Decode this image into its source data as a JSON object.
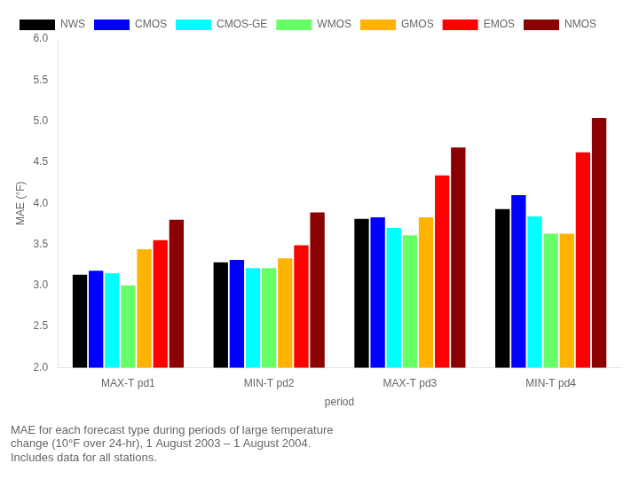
{
  "chart_data": {
    "type": "bar",
    "categories": [
      "MAX-T pd1",
      "MIN-T pd2",
      "MAX-T pd3",
      "MIN-T pd4"
    ],
    "series": [
      {
        "name": "NWS",
        "color": "#000000",
        "values": [
          3.13,
          3.28,
          3.81,
          3.93
        ]
      },
      {
        "name": "CMOS",
        "color": "#0000FF",
        "values": [
          3.18,
          3.31,
          3.83,
          4.1
        ]
      },
      {
        "name": "CMOS-GE",
        "color": "#00FFFF",
        "values": [
          3.15,
          3.21,
          3.7,
          3.84
        ]
      },
      {
        "name": "WMOS",
        "color": "#66FF66",
        "values": [
          3.0,
          3.21,
          3.61,
          3.63
        ]
      },
      {
        "name": "GMOS",
        "color": "#FFB300",
        "values": [
          3.44,
          3.33,
          3.83,
          3.63
        ]
      },
      {
        "name": "EMOS",
        "color": "#FF0000",
        "values": [
          3.55,
          3.49,
          4.34,
          4.62
        ]
      },
      {
        "name": "NMOS",
        "color": "#8B0000",
        "values": [
          3.8,
          3.89,
          4.68,
          5.04
        ]
      }
    ],
    "xlabel": "period",
    "ylabel": "MAE (°F)",
    "ylim": [
      2.0,
      6.0
    ],
    "yticks": [
      {
        "value": 2.0,
        "label": "2.0"
      },
      {
        "value": 2.5,
        "label": "2.5"
      },
      {
        "value": 3.0,
        "label": "3.0"
      },
      {
        "value": 3.5,
        "label": "3.5"
      },
      {
        "value": 4.0,
        "label": "4.0"
      },
      {
        "value": 4.5,
        "label": "4.5"
      },
      {
        "value": 5.0,
        "label": "5.0"
      },
      {
        "value": 5.5,
        "label": "5.5"
      },
      {
        "value": 6.0,
        "label": "6.0"
      }
    ],
    "grid": false,
    "legend": "top",
    "annotations": [
      "MAE for each forecast type during periods of large temperature",
      "change (10°F over 24-hr), 1 August 2003 – 1 August 2004.",
      "Includes data for all stations."
    ]
  }
}
